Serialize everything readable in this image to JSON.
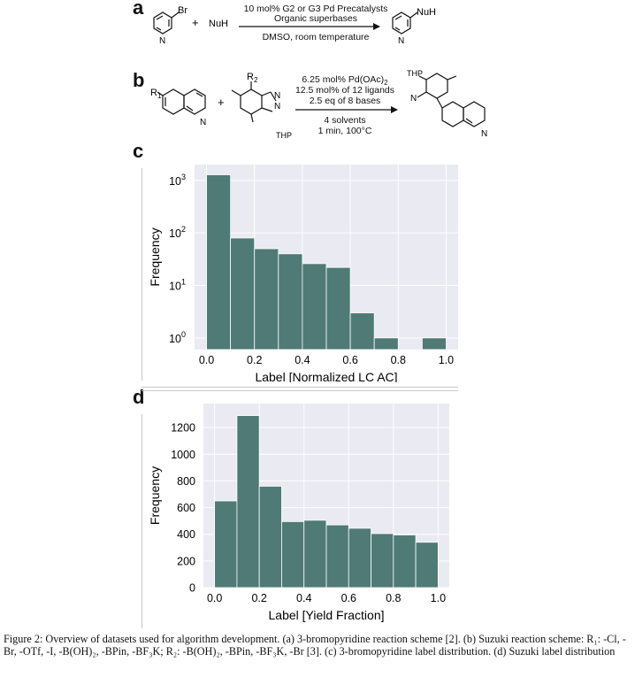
{
  "panels": {
    "a": {
      "letter": "a",
      "reactant_sub": "Br",
      "plus": "+",
      "nucleophile": "NuH",
      "conditions_above_1": "10 mol% G2 or G3 Pd Precatalysts",
      "conditions_above_2": "Organic superbases",
      "conditions_below": "DMSO, room temperature",
      "product_sub": "NuH"
    },
    "b": {
      "letter": "b",
      "r1": "R",
      "r1_sub": "1",
      "r2": "R",
      "r2_sub": "2",
      "plus": "+",
      "n_label": "N",
      "thp": "THP",
      "cond_1": "6.25 mol% Pd(OAc)",
      "cond_1_sub": "2",
      "cond_2": "12.5 mol% of 12 ligands",
      "cond_3": "2.5 eq of 8 bases",
      "cond_4": "4 solvents",
      "cond_5": "1 min, 100°C"
    },
    "c": {
      "letter": "c"
    },
    "d": {
      "letter": "d"
    }
  },
  "chart_data": [
    {
      "type": "bar",
      "panel": "c",
      "xlabel": "Label [Normalized LC AC]",
      "ylabel": "Frequency",
      "yscale": "log",
      "bin_edges": [
        0.0,
        0.1,
        0.2,
        0.3,
        0.4,
        0.5,
        0.6,
        0.7,
        0.8,
        0.9,
        1.0
      ],
      "values": [
        1280,
        80,
        50,
        40,
        26,
        22,
        3,
        1,
        0,
        1
      ],
      "xticks": [
        "0.0",
        "0.2",
        "0.4",
        "0.6",
        "0.8",
        "1.0"
      ],
      "yticks": [
        "10",
        "10",
        "10",
        "10"
      ],
      "ytick_exponents": [
        "0",
        "1",
        "2",
        "3"
      ],
      "xlim": [
        -0.05,
        1.05
      ],
      "ylim": [
        0.6,
        2000
      ],
      "grid": true,
      "bar_color": "#4f7a76",
      "background": "#eaeaf2"
    },
    {
      "type": "bar",
      "panel": "d",
      "xlabel": "Label [Yield Fraction]",
      "ylabel": "Frequency",
      "bin_edges": [
        0.0,
        0.1,
        0.2,
        0.3,
        0.4,
        0.5,
        0.6,
        0.7,
        0.8,
        0.9,
        1.0
      ],
      "values": [
        650,
        1290,
        760,
        495,
        505,
        470,
        445,
        405,
        395,
        340
      ],
      "xticks": [
        "0.0",
        "0.2",
        "0.4",
        "0.6",
        "0.8",
        "1.0"
      ],
      "yticks": [
        "0",
        "200",
        "400",
        "600",
        "800",
        "1000",
        "1200"
      ],
      "xlim": [
        -0.05,
        1.05
      ],
      "ylim": [
        0,
        1380
      ],
      "grid": true,
      "bar_color": "#4f7a76",
      "background": "#eaeaf2"
    }
  ],
  "caption": {
    "text": "Figure 2: Overview of datasets used for algorithm development. (a) 3-bromopyridine reaction scheme [2]. (b) Suzuki reaction scheme: R₁: -Cl, -Br, -OTf, -I, -B(OH)₂, -BPin, -BF₃K; R₂: -B(OH)₂, -BPin, -BF₃K, -Br [3]. (c) 3-bromopyridine label distribution. (d) Suzuki label distribution"
  }
}
